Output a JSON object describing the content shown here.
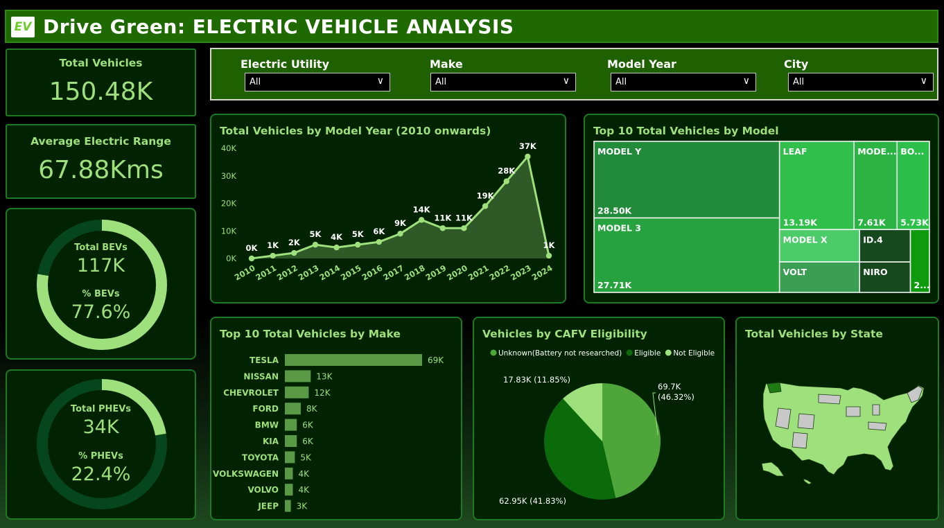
{
  "header": {
    "logo_text": "EV",
    "title": "Drive Green: ELECTRIC VEHICLE ANALYSIS"
  },
  "kpis": {
    "total_vehicles": {
      "label": "Total Vehicles",
      "value": "150.48K"
    },
    "avg_range": {
      "label": "Average Electric Range",
      "value": "67.88Kms"
    },
    "bev": {
      "label1": "Total BEVs",
      "value1": "117K",
      "label2": "% BEVs",
      "value2": "77.6%",
      "fraction": 0.776
    },
    "phev": {
      "label1": "Total PHEVs",
      "value1": "34K",
      "label2": "% PHEVs",
      "value2": "22.4%",
      "fraction": 0.224
    }
  },
  "filters": [
    {
      "label": "Electric Utility",
      "value": "All"
    },
    {
      "label": "Make",
      "value": "All"
    },
    {
      "label": "Model Year",
      "value": "All"
    },
    {
      "label": "City",
      "value": "All"
    }
  ],
  "colors": {
    "accent": "#9ee07c",
    "panel_bg": "#012301",
    "border": "#1c7a22",
    "header_bg": "#1f6a00"
  },
  "chart_data": [
    {
      "type": "area",
      "title": "Total Vehicles by Model Year (2010 onwards)",
      "categories": [
        "2010",
        "2011",
        "2012",
        "2013",
        "2014",
        "2015",
        "2016",
        "2017",
        "2018",
        "2019",
        "2020",
        "2021",
        "2022",
        "2023",
        "2024"
      ],
      "values": [
        0,
        1,
        2,
        5,
        4,
        5,
        6,
        9,
        14,
        11,
        11,
        19,
        28,
        37,
        1
      ],
      "data_labels": [
        "0K",
        "1K",
        "2K",
        "5K",
        "4K",
        "5K",
        "6K",
        "9K",
        "14K",
        "11K",
        "11K",
        "19K",
        "28K",
        "37K",
        "1K"
      ],
      "y_ticks": [
        "0K",
        "10K",
        "20K",
        "30K",
        "40K"
      ],
      "ylim": [
        0,
        40
      ],
      "grid": false
    },
    {
      "type": "treemap",
      "title": "Top 10 Total Vehicles by Model",
      "items": [
        {
          "name": "MODEL Y",
          "value": 28.5,
          "label": "28.50K",
          "color": "#228b3a"
        },
        {
          "name": "MODEL 3",
          "value": 27.71,
          "label": "27.71K",
          "color": "#26a33e"
        },
        {
          "name": "LEAF",
          "value": 13.19,
          "label": "13.19K",
          "color": "#2fbf4a"
        },
        {
          "name": "MODE...",
          "value": 7.61,
          "label": "7.61K",
          "color": "#2bb443"
        },
        {
          "name": "BO...",
          "value": 5.73,
          "label": "5.73K",
          "color": "#2cc04a"
        },
        {
          "name": "MODEL X",
          "value": 5.2,
          "label": "",
          "color": "#4ccc68"
        },
        {
          "name": "VOLT",
          "value": 4.9,
          "label": "",
          "color": "#3a9f52"
        },
        {
          "name": "ID.4",
          "value": 3.3,
          "label": "",
          "color": "#17491f"
        },
        {
          "name": "NIRO",
          "value": 3.1,
          "label": "",
          "color": "#17491f"
        },
        {
          "name": "",
          "value": 2.4,
          "label": "2...",
          "color": "#0d9a0d"
        }
      ]
    },
    {
      "type": "bar",
      "title": "Top 10 Total Vehicles by Make",
      "categories": [
        "TESLA",
        "NISSAN",
        "CHEVROLET",
        "FORD",
        "BMW",
        "KIA",
        "TOYOTA",
        "VOLKSWAGEN",
        "VOLVO",
        "JEEP"
      ],
      "values": [
        69,
        13,
        12,
        8,
        6,
        6,
        5,
        4,
        4,
        3
      ],
      "data_labels": [
        "69K",
        "13K",
        "12K",
        "8K",
        "6K",
        "6K",
        "5K",
        "4K",
        "4K",
        "3K"
      ]
    },
    {
      "type": "pie",
      "title": "Vehicles by CAFV Eligibility",
      "legend": [
        {
          "name": "Unknown(Battery not researched)",
          "color": "#4ea63a"
        },
        {
          "name": "Eligible",
          "color": "#0b6b0b"
        },
        {
          "name": "Not Eligible",
          "color": "#9ee07c"
        }
      ],
      "slices": [
        {
          "name": "Unknown(Battery not researched)",
          "value": 46.32,
          "label1": "69.7K",
          "label2": "(46.32%)"
        },
        {
          "name": "Eligible",
          "value": 41.83,
          "label1": "62.95K (41.83%)",
          "label2": ""
        },
        {
          "name": "Not Eligible",
          "value": 11.85,
          "label1": "17.83K (11.85%)",
          "label2": ""
        }
      ]
    },
    {
      "type": "map",
      "title": "Total Vehicles by State"
    }
  ]
}
